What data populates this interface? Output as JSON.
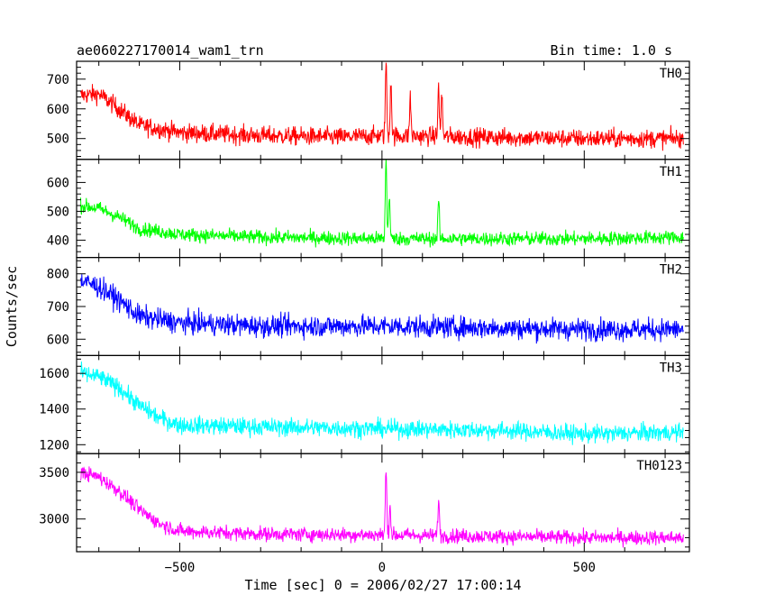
{
  "chart_data": {
    "type": "line",
    "title": "ae060227170014_wam1_trn",
    "subtitle": "Bin time: 1.0 s",
    "xlabel": "Time [sec] 0 = 2006/02/27 17:00:14",
    "ylabel": "Counts/sec",
    "xlim": [
      -755,
      760
    ],
    "x_ticks": [
      -500,
      0,
      500
    ],
    "x_tick_labels": [
      "−500",
      "0",
      "500"
    ],
    "x_range": [
      -745,
      745
    ],
    "grid": false,
    "panels": [
      {
        "name": "TH0",
        "color": "#ff0000",
        "ylim": [
          430,
          760
        ],
        "y_ticks": [
          500,
          600,
          700
        ],
        "y_tick_labels": [
          "500",
          "600",
          "700"
        ],
        "profile": [
          [
            -745,
            645
          ],
          [
            -700,
            650
          ],
          [
            -660,
            610
          ],
          [
            -600,
            545
          ],
          [
            -500,
            520
          ],
          [
            -300,
            510
          ],
          [
            -100,
            505
          ],
          [
            0,
            510
          ],
          [
            500,
            500
          ],
          [
            745,
            500
          ]
        ],
        "noise": 28,
        "spikes": [
          [
            10,
            755
          ],
          [
            22,
            700
          ],
          [
            70,
            640
          ],
          [
            140,
            675
          ],
          [
            148,
            650
          ]
        ]
      },
      {
        "name": "TH1",
        "color": "#00ff00",
        "ylim": [
          340,
          680
        ],
        "y_ticks": [
          400,
          500,
          600
        ],
        "y_tick_labels": [
          "400",
          "500",
          "600"
        ],
        "profile": [
          [
            -745,
            520
          ],
          [
            -700,
            510
          ],
          [
            -650,
            480
          ],
          [
            -600,
            440
          ],
          [
            -500,
            420
          ],
          [
            -300,
            410
          ],
          [
            0,
            405
          ],
          [
            500,
            405
          ],
          [
            745,
            410
          ]
        ],
        "noise": 22,
        "spikes": [
          [
            10,
            680
          ],
          [
            18,
            560
          ],
          [
            140,
            540
          ]
        ]
      },
      {
        "name": "TH2",
        "color": "#0000ff",
        "ylim": [
          550,
          850
        ],
        "y_ticks": [
          600,
          700,
          800
        ],
        "y_tick_labels": [
          "600",
          "700",
          "800"
        ],
        "profile": [
          [
            -745,
            780
          ],
          [
            -700,
            760
          ],
          [
            -650,
            720
          ],
          [
            -600,
            670
          ],
          [
            -500,
            650
          ],
          [
            -300,
            640
          ],
          [
            0,
            640
          ],
          [
            500,
            630
          ],
          [
            745,
            630
          ]
        ],
        "noise": 30,
        "spikes": []
      },
      {
        "name": "TH3",
        "color": "#00ffff",
        "ylim": [
          1150,
          1700
        ],
        "y_ticks": [
          1200,
          1400,
          1600
        ],
        "y_tick_labels": [
          "1200",
          "1400",
          "1600"
        ],
        "profile": [
          [
            -745,
            1600
          ],
          [
            -700,
            1580
          ],
          [
            -650,
            1520
          ],
          [
            -600,
            1420
          ],
          [
            -550,
            1350
          ],
          [
            -500,
            1310
          ],
          [
            -300,
            1300
          ],
          [
            0,
            1290
          ],
          [
            300,
            1280
          ],
          [
            500,
            1260
          ],
          [
            745,
            1270
          ]
        ],
        "noise": 45,
        "spikes": []
      },
      {
        "name": "TH0123",
        "color": "#ff00ff",
        "ylim": [
          2650,
          3700
        ],
        "y_ticks": [
          3000,
          3500
        ],
        "y_tick_labels": [
          "3000",
          "3500"
        ],
        "profile": [
          [
            -745,
            3500
          ],
          [
            -700,
            3450
          ],
          [
            -650,
            3300
          ],
          [
            -600,
            3100
          ],
          [
            -550,
            2950
          ],
          [
            -500,
            2870
          ],
          [
            -300,
            2840
          ],
          [
            0,
            2830
          ],
          [
            500,
            2800
          ],
          [
            745,
            2800
          ]
        ],
        "noise": 70,
        "spikes": [
          [
            10,
            3520
          ],
          [
            20,
            3150
          ],
          [
            140,
            3220
          ]
        ]
      }
    ]
  }
}
